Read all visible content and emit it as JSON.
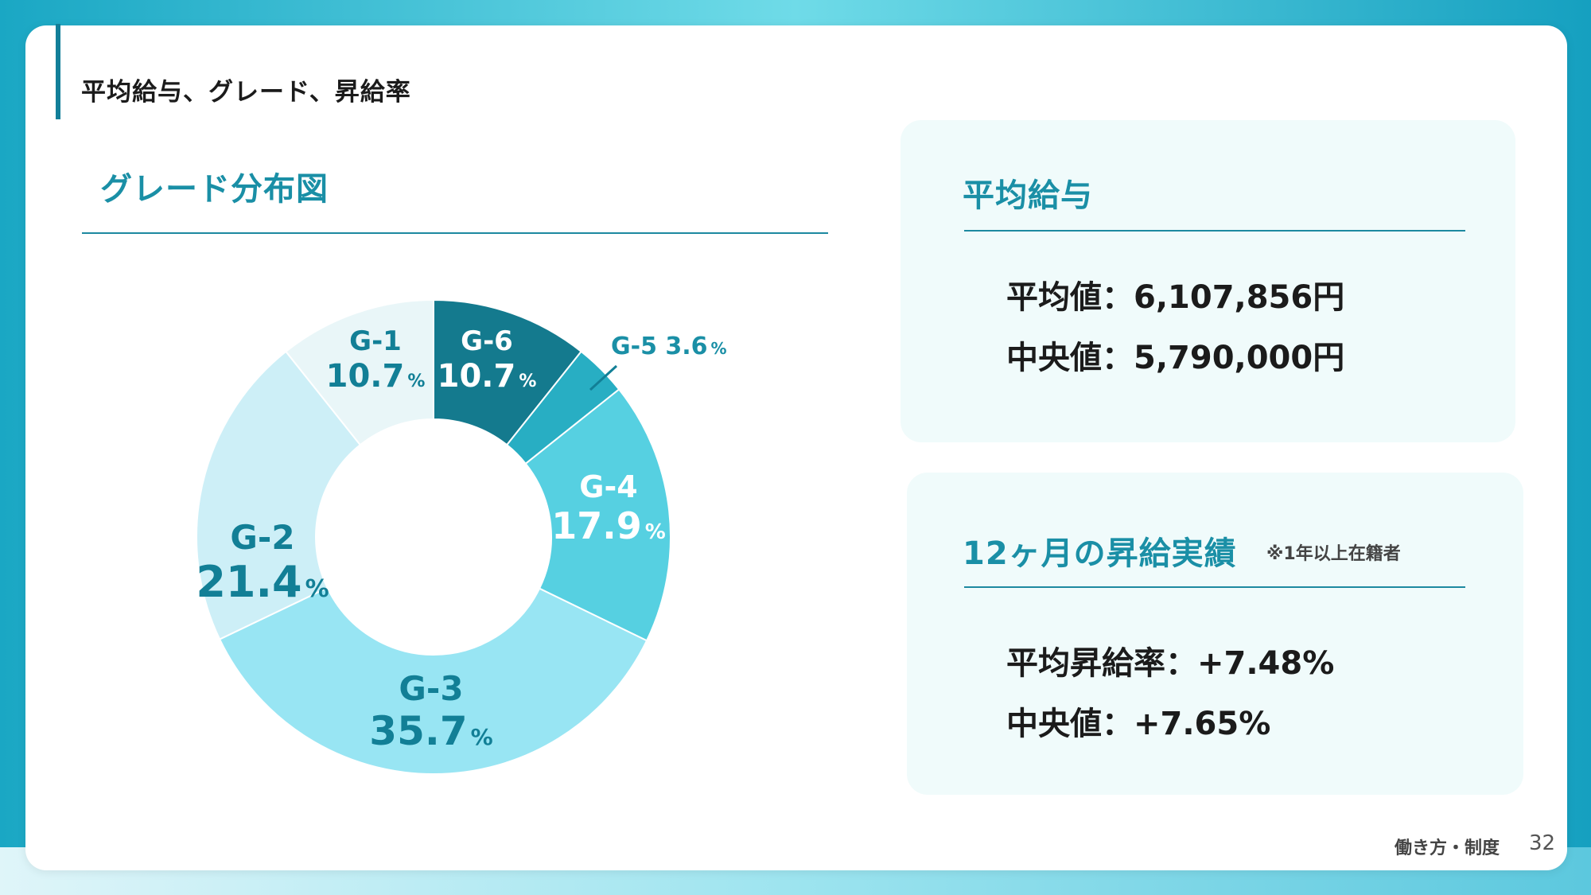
{
  "header": {
    "title": "平均給与、グレード、昇給率"
  },
  "grade_section": {
    "title": "グレード分布図"
  },
  "salary_panel": {
    "title": "平均給与",
    "average": "平均値：6,107,856円",
    "median": "中央値：5,790,000円"
  },
  "raise_panel": {
    "title": "12ヶ月の昇給実績",
    "note": "※1年以上在籍者",
    "average": "平均昇給率：+7.48%",
    "median": "中央値：+7.65%"
  },
  "footer": {
    "label": "働き方・制度",
    "page": "32"
  },
  "chart_data": {
    "type": "pie",
    "categories": [
      "G-6",
      "G-5",
      "G-4",
      "G-3",
      "G-2",
      "G-1"
    ],
    "values": [
      10.7,
      3.6,
      17.9,
      35.7,
      21.4,
      10.7
    ],
    "value_labels": [
      "10.7",
      "3.6",
      "17.9",
      "35.7",
      "21.4",
      "10.7"
    ],
    "unit": "%",
    "colors": [
      "#147a8e",
      "#28aec3",
      "#56d0e1",
      "#98e5f3",
      "#cdeff7",
      "#e9f6f8"
    ],
    "label_colors": [
      "#ffffff",
      "#1a8fa6",
      "#ffffff",
      "#127f96",
      "#127f96",
      "#127f96"
    ],
    "donut": true
  }
}
